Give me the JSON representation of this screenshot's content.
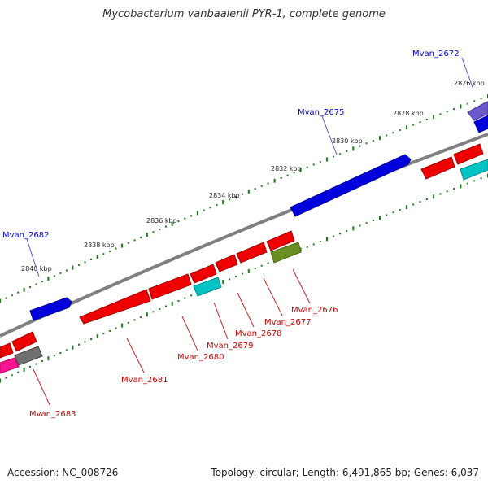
{
  "title": "Mycobacterium vanbaalenii PYR-1, complete genome",
  "accession": "Accession: NC_008726",
  "topology": "Topology: circular; Length: 6,491,865 bp; Genes: 6,037",
  "colors": {
    "backbone": "#808080",
    "tick": "#1a7a1a",
    "gene_red": "#ee0000",
    "gene_blue": "#0000dd",
    "gene_cyan": "#00c4c4",
    "gene_olive": "#6b8e23",
    "gene_purple": "#6a5acd",
    "gene_pink": "#ff1493",
    "gene_gray": "#707070",
    "label_blue": "#0000cc",
    "label_red": "#cc0000"
  },
  "scale_labels": [
    "2826 kbp",
    "2828 kbp",
    "2830 kbp",
    "2832 kbp",
    "2834 kbp",
    "2836 kbp",
    "2838 kbp",
    "2840 kbp"
  ],
  "gene_labels_forward": [
    {
      "id": "Mvan_2672"
    },
    {
      "id": "Mvan_2675"
    },
    {
      "id": "Mvan_2682"
    }
  ],
  "gene_labels_reverse": [
    {
      "id": "Mvan_2676"
    },
    {
      "id": "Mvan_2677"
    },
    {
      "id": "Mvan_2678"
    },
    {
      "id": "Mvan_2679"
    },
    {
      "id": "Mvan_2680"
    },
    {
      "id": "Mvan_2681"
    },
    {
      "id": "Mvan_2683"
    }
  ]
}
